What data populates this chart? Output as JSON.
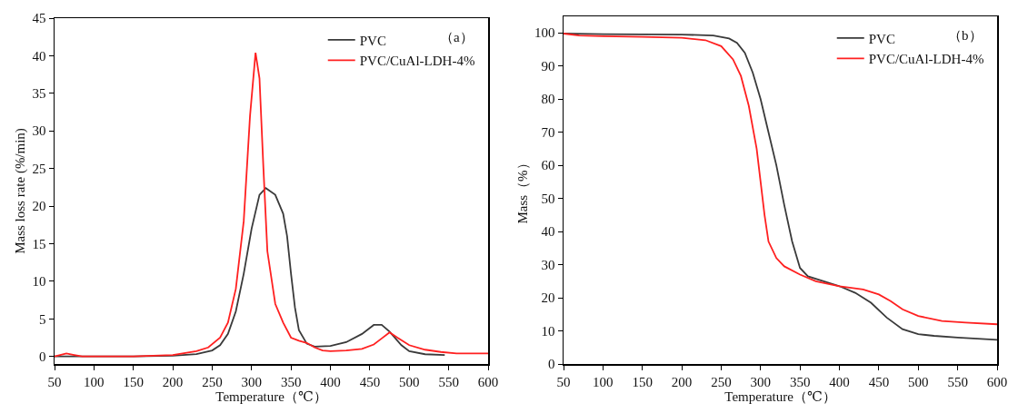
{
  "chart_data": [
    {
      "type": "line",
      "xlabel": "Temperature（℃）",
      "ylabel": "Mass loss rate (%/min)",
      "annotations": [
        "（a）"
      ],
      "legend": "top right",
      "grid": false,
      "line_style": "solid",
      "marker": "none",
      "xlim": [
        50,
        600
      ],
      "ylim": [
        -1,
        45
      ],
      "xticks": [
        50,
        100,
        150,
        200,
        250,
        300,
        350,
        400,
        450,
        500,
        550,
        600
      ],
      "yticks": [
        0,
        5,
        10,
        15,
        20,
        25,
        30,
        35,
        40,
        45
      ],
      "series": [
        {
          "name": "PVC",
          "color": "#3a3a3a",
          "x": [
            50,
            100,
            150,
            200,
            230,
            250,
            260,
            270,
            280,
            290,
            300,
            310,
            318,
            330,
            340,
            345,
            350,
            355,
            360,
            370,
            380,
            400,
            420,
            440,
            455,
            465,
            475,
            490,
            500,
            520,
            545
          ],
          "values": [
            0,
            0,
            0,
            0.1,
            0.3,
            0.8,
            1.5,
            3,
            6,
            11,
            17,
            21.5,
            22.4,
            21.5,
            19,
            16,
            11,
            6.5,
            3.5,
            1.7,
            1.3,
            1.4,
            1.9,
            3,
            4.2,
            4.2,
            3.3,
            1.5,
            0.7,
            0.3,
            0.2
          ]
        },
        {
          "name": "PVC/CuAl-LDH-4%",
          "color": "#ff2020",
          "x": [
            50,
            65,
            75,
            85,
            150,
            200,
            230,
            245,
            260,
            270,
            280,
            290,
            298,
            305,
            310,
            315,
            320,
            330,
            340,
            350,
            360,
            370,
            380,
            390,
            400,
            420,
            440,
            455,
            465,
            475,
            485,
            500,
            520,
            540,
            560,
            600
          ],
          "values": [
            0,
            0.4,
            0.2,
            0,
            0,
            0.2,
            0.7,
            1.2,
            2.5,
            4.5,
            9,
            18,
            32,
            40.4,
            37,
            25,
            14,
            7,
            4.5,
            2.5,
            2.1,
            1.8,
            1.2,
            0.8,
            0.7,
            0.8,
            1,
            1.6,
            2.4,
            3.2,
            2.5,
            1.5,
            0.9,
            0.6,
            0.4,
            0.4
          ]
        }
      ]
    },
    {
      "type": "line",
      "xlabel": "Temperature（℃）",
      "ylabel": "Mass（%）",
      "annotations": [
        "（b）"
      ],
      "legend": "top right",
      "grid": false,
      "line_style": "solid",
      "marker": "none",
      "xlim": [
        50,
        600
      ],
      "ylim": [
        0,
        105
      ],
      "xticks": [
        50,
        100,
        150,
        200,
        250,
        300,
        350,
        400,
        450,
        500,
        550,
        600
      ],
      "yticks": [
        0,
        10,
        20,
        30,
        40,
        50,
        60,
        70,
        80,
        90,
        100
      ],
      "series": [
        {
          "name": "PVC",
          "color": "#3a3a3a",
          "x": [
            50,
            100,
            200,
            240,
            260,
            270,
            280,
            290,
            300,
            310,
            320,
            330,
            340,
            350,
            360,
            380,
            400,
            420,
            440,
            460,
            480,
            500,
            520,
            550,
            600
          ],
          "values": [
            99.8,
            99.6,
            99.5,
            99.2,
            98.3,
            97,
            94,
            88,
            80,
            70,
            60,
            48,
            37,
            29,
            26.5,
            25,
            23.5,
            21.5,
            18.5,
            14,
            10.5,
            9,
            8.5,
            8,
            7.3
          ]
        },
        {
          "name": "PVC/CuAl-LDH-4%",
          "color": "#ff2020",
          "x": [
            50,
            70,
            100,
            150,
            200,
            230,
            250,
            265,
            275,
            285,
            295,
            300,
            305,
            310,
            320,
            330,
            350,
            370,
            400,
            430,
            450,
            465,
            480,
            500,
            530,
            560,
            600
          ],
          "values": [
            99.8,
            99.2,
            99,
            98.8,
            98.5,
            97.8,
            96,
            92,
            87,
            78,
            65,
            55,
            45,
            37,
            32,
            29.5,
            27,
            25,
            23.5,
            22.5,
            21,
            19,
            16.5,
            14.5,
            13,
            12.5,
            12
          ]
        }
      ]
    }
  ]
}
